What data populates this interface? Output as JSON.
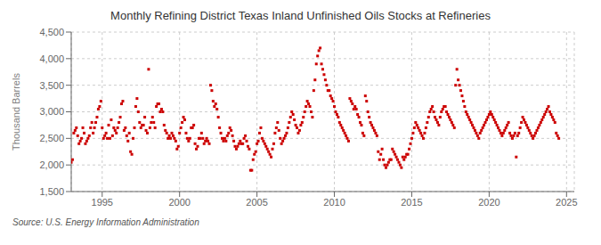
{
  "chart_data": {
    "type": "scatter",
    "title": "Monthly Refining District Texas Inland Unfinished Oils Stocks at Refineries",
    "ylabel": "Thousand Barrels",
    "annotations": [
      "Source: U.S. Energy Information Administration"
    ],
    "xlim": [
      1993.0,
      2025.5
    ],
    "xticks": [
      1995,
      2000,
      2005,
      2010,
      2015,
      2020,
      2025
    ],
    "ylim": [
      1500,
      4500
    ],
    "yticks": [
      {
        "value": 1500,
        "label": "1,500"
      },
      {
        "value": 2000,
        "label": "2,000"
      },
      {
        "value": 2500,
        "label": "2,500"
      },
      {
        "value": 3000,
        "label": "3,000"
      },
      {
        "value": 3500,
        "label": "3,500"
      },
      {
        "value": 4000,
        "label": "4,000"
      },
      {
        "value": 4500,
        "label": "4,500"
      }
    ],
    "grid": true,
    "color": "#cc0000",
    "marker": "square",
    "x": [
      1993.0,
      1993.0833333333333,
      1993.1666666666667,
      1993.25,
      1993.3333333333333,
      1993.4166666666667,
      1993.5,
      1993.5833333333333,
      1993.6666666666667,
      1993.75,
      1993.8333333333333,
      1993.9166666666667,
      1994.0,
      1994.0833333333333,
      1994.1666666666667,
      1994.25,
      1994.3333333333333,
      1994.4166666666667,
      1994.5,
      1994.5833333333333,
      1994.6666666666667,
      1994.75,
      1994.8333333333333,
      1994.9166666666667,
      1995.0,
      1995.0833333333333,
      1995.1666666666667,
      1995.25,
      1995.3333333333333,
      1995.4166666666667,
      1995.5,
      1995.5833333333333,
      1995.6666666666667,
      1995.75,
      1995.8333333333333,
      1995.9166666666667,
      1996.0,
      1996.0833333333333,
      1996.1666666666667,
      1996.25,
      1996.3333333333333,
      1996.4166666666667,
      1996.5,
      1996.5833333333333,
      1996.6666666666667,
      1996.75,
      1996.8333333333333,
      1996.9166666666667,
      1997.0,
      1997.0833333333333,
      1997.1666666666667,
      1997.25,
      1997.3333333333333,
      1997.4166666666667,
      1997.5,
      1997.5833333333333,
      1997.6666666666667,
      1997.75,
      1997.8333333333333,
      1997.9166666666667,
      1998.0,
      1998.0833333333333,
      1998.1666666666667,
      1998.25,
      1998.3333333333333,
      1998.4166666666667,
      1998.5,
      1998.5833333333333,
      1998.6666666666667,
      1998.75,
      1998.8333333333333,
      1998.9166666666667,
      1999.0,
      1999.0833333333333,
      1999.1666666666667,
      1999.25,
      1999.3333333333333,
      1999.4166666666667,
      1999.5,
      1999.5833333333333,
      1999.6666666666667,
      1999.75,
      1999.8333333333333,
      1999.9166666666667,
      2000.0,
      2000.0833333333333,
      2000.1666666666667,
      2000.25,
      2000.3333333333333,
      2000.4166666666667,
      2000.5,
      2000.5833333333333,
      2000.6666666666667,
      2000.75,
      2000.8333333333333,
      2000.9166666666667,
      2001.0,
      2001.0833333333333,
      2001.1666666666667,
      2001.25,
      2001.3333333333333,
      2001.4166666666667,
      2001.5,
      2001.5833333333333,
      2001.6666666666667,
      2001.75,
      2001.8333333333333,
      2001.9166666666667,
      2002.0,
      2002.0833333333333,
      2002.1666666666667,
      2002.25,
      2002.3333333333333,
      2002.4166666666667,
      2002.5,
      2002.5833333333333,
      2002.6666666666667,
      2002.75,
      2002.8333333333333,
      2002.9166666666667,
      2003.0,
      2003.0833333333333,
      2003.1666666666667,
      2003.25,
      2003.3333333333333,
      2003.4166666666667,
      2003.5,
      2003.5833333333333,
      2003.6666666666667,
      2003.75,
      2003.8333333333333,
      2003.9166666666667,
      2004.0,
      2004.0833333333333,
      2004.1666666666667,
      2004.25,
      2004.3333333333333,
      2004.4166666666667,
      2004.5,
      2004.5833333333333,
      2004.6666666666667,
      2004.75,
      2004.8333333333333,
      2004.9166666666667,
      2005.0,
      2005.0833333333333,
      2005.1666666666667,
      2005.25,
      2005.3333333333333,
      2005.4166666666667,
      2005.5,
      2005.5833333333333,
      2005.6666666666667,
      2005.75,
      2005.8333333333333,
      2005.9166666666667,
      2006.0,
      2006.0833333333333,
      2006.1666666666667,
      2006.25,
      2006.3333333333333,
      2006.4166666666667,
      2006.5,
      2006.5833333333333,
      2006.6666666666667,
      2006.75,
      2006.8333333333333,
      2006.9166666666667,
      2007.0,
      2007.0833333333333,
      2007.1666666666667,
      2007.25,
      2007.3333333333333,
      2007.4166666666667,
      2007.5,
      2007.5833333333333,
      2007.6666666666667,
      2007.75,
      2007.8333333333333,
      2007.9166666666667,
      2008.0,
      2008.0833333333333,
      2008.1666666666667,
      2008.25,
      2008.3333333333333,
      2008.4166666666667,
      2008.5,
      2008.5833333333333,
      2008.6666666666667,
      2008.75,
      2008.8333333333333,
      2008.9166666666667,
      2009.0,
      2009.0833333333333,
      2009.1666666666667,
      2009.25,
      2009.3333333333333,
      2009.4166666666667,
      2009.5,
      2009.5833333333333,
      2009.6666666666667,
      2009.75,
      2009.8333333333333,
      2009.9166666666667,
      2010.0,
      2010.0833333333333,
      2010.1666666666667,
      2010.25,
      2010.3333333333333,
      2010.4166666666667,
      2010.5,
      2010.5833333333333,
      2010.6666666666667,
      2010.75,
      2010.8333333333333,
      2010.9166666666667,
      2011.0,
      2011.0833333333333,
      2011.1666666666667,
      2011.25,
      2011.3333333333333,
      2011.4166666666667,
      2011.5,
      2011.5833333333333,
      2011.6666666666667,
      2011.75,
      2011.8333333333333,
      2011.9166666666667,
      2012.0,
      2012.0833333333333,
      2012.1666666666667,
      2012.25,
      2012.3333333333333,
      2012.4166666666667,
      2012.5,
      2012.5833333333333,
      2012.6666666666667,
      2012.75,
      2012.8333333333333,
      2012.9166666666667,
      2013.0,
      2013.0833333333333,
      2013.1666666666667,
      2013.25,
      2013.3333333333333,
      2013.4166666666667,
      2013.5,
      2013.5833333333333,
      2013.6666666666667,
      2013.75,
      2013.8333333333333,
      2013.9166666666667,
      2014.0,
      2014.0833333333333,
      2014.1666666666667,
      2014.25,
      2014.3333333333333,
      2014.4166666666667,
      2014.5,
      2014.5833333333333,
      2014.6666666666667,
      2014.75,
      2014.8333333333333,
      2014.9166666666667,
      2015.0,
      2015.0833333333333,
      2015.1666666666667,
      2015.25,
      2015.3333333333333,
      2015.4166666666667,
      2015.5,
      2015.5833333333333,
      2015.6666666666667,
      2015.75,
      2015.8333333333333,
      2015.9166666666667,
      2016.0,
      2016.0833333333333,
      2016.1666666666667,
      2016.25,
      2016.3333333333333,
      2016.4166666666667,
      2016.5,
      2016.5833333333333,
      2016.6666666666667,
      2016.75,
      2016.8333333333333,
      2016.9166666666667,
      2017.0,
      2017.0833333333333,
      2017.1666666666667,
      2017.25,
      2017.3333333333333,
      2017.4166666666667,
      2017.5,
      2017.5833333333333,
      2017.6666666666667,
      2017.75,
      2017.8333333333333,
      2017.9166666666667,
      2018.0,
      2018.0833333333333,
      2018.1666666666667,
      2018.25,
      2018.3333333333333,
      2018.4166666666667,
      2018.5,
      2018.5833333333333,
      2018.6666666666667,
      2018.75,
      2018.8333333333333,
      2018.9166666666667,
      2019.0,
      2019.0833333333333,
      2019.1666666666667,
      2019.25,
      2019.3333333333333,
      2019.4166666666667,
      2019.5,
      2019.5833333333333,
      2019.6666666666667,
      2019.75,
      2019.8333333333333,
      2019.9166666666667,
      2020.0,
      2020.0833333333333,
      2020.1666666666667,
      2020.25,
      2020.3333333333333,
      2020.4166666666667,
      2020.5,
      2020.5833333333333,
      2020.6666666666667,
      2020.75,
      2020.8333333333333,
      2020.9166666666667,
      2021.0,
      2021.0833333333333,
      2021.1666666666667,
      2021.25,
      2021.3333333333333,
      2021.4166666666667,
      2021.5,
      2021.5833333333333,
      2021.6666666666667,
      2021.75,
      2021.8333333333333,
      2021.9166666666667,
      2022.0,
      2022.0833333333333,
      2022.1666666666667,
      2022.25,
      2022.3333333333333,
      2022.4166666666667,
      2022.5,
      2022.5833333333333,
      2022.6666666666667,
      2022.75,
      2022.8333333333333,
      2022.9166666666667,
      2023.0,
      2023.0833333333333,
      2023.1666666666667,
      2023.25,
      2023.3333333333333,
      2023.4166666666667,
      2023.5,
      2023.5833333333333,
      2023.6666666666667,
      2023.75,
      2023.8333333333333,
      2023.9166666666667,
      2024.0,
      2024.0833333333333,
      2024.1666666666667,
      2024.25,
      2024.3333333333333,
      2024.4166666666667,
      2024.5
    ],
    "values": [
      2050,
      2100,
      2600,
      2650,
      2700,
      2550,
      2400,
      2450,
      2500,
      2700,
      2600,
      2400,
      2450,
      2500,
      2550,
      2700,
      2800,
      2600,
      2700,
      2800,
      2900,
      3050,
      3100,
      3200,
      2700,
      2500,
      2550,
      2600,
      2500,
      2750,
      2500,
      2850,
      2550,
      2700,
      2650,
      2600,
      2700,
      2800,
      2900,
      3150,
      3200,
      2650,
      2700,
      2550,
      2450,
      2600,
      2250,
      2200,
      2500,
      2700,
      3100,
      3250,
      3000,
      2800,
      2700,
      2750,
      2750,
      2900,
      2650,
      2600,
      3800,
      2700,
      2800,
      2900,
      2800,
      2700,
      3100,
      3150,
      3150,
      3000,
      3050,
      3000,
      2750,
      2650,
      2600,
      2500,
      2550,
      2500,
      2600,
      2550,
      2500,
      2450,
      2300,
      2350,
      2600,
      2700,
      2800,
      2900,
      2850,
      2600,
      2500,
      2450,
      2500,
      2700,
      2700,
      2750,
      2400,
      2300,
      2350,
      2500,
      2500,
      2600,
      2500,
      2400,
      2450,
      2500,
      2450,
      2400,
      3500,
      3400,
      3200,
      3100,
      3150,
      3050,
      2900,
      2700,
      2600,
      2500,
      2450,
      2500,
      2450,
      2550,
      2600,
      2700,
      2650,
      2550,
      2450,
      2350,
      2300,
      2350,
      2400,
      2450,
      2400,
      2400,
      2500,
      2550,
      2450,
      2350,
      2300,
      1900,
      1900,
      2100,
      2200,
      2250,
      2400,
      2450,
      2600,
      2700,
      2500,
      2450,
      2400,
      2350,
      2300,
      2250,
      2200,
      2150,
      2300,
      2400,
      2600,
      2700,
      2800,
      2650,
      2500,
      2400,
      2450,
      2500,
      2550,
      2600,
      2700,
      2800,
      2900,
      3000,
      2950,
      2850,
      2750,
      2700,
      2600,
      2650,
      2750,
      2800,
      2900,
      3000,
      3100,
      3200,
      3150,
      3100,
      3000,
      2900,
      3400,
      3600,
      3900,
      4050,
      4150,
      4200,
      3900,
      3800,
      3700,
      3600,
      3500,
      3400,
      3400,
      3300,
      3250,
      3200,
      3100,
      3000,
      2950,
      2900,
      2800,
      2750,
      2700,
      2650,
      2600,
      2550,
      2500,
      2450,
      3250,
      3200,
      3150,
      3050,
      3100,
      3050,
      2950,
      2900,
      2800,
      2750,
      2600,
      2550,
      3300,
      3200,
      3000,
      2900,
      2800,
      2750,
      2700,
      2650,
      2600,
      2550,
      2250,
      2100,
      2200,
      2300,
      2100,
      2000,
      1950,
      2000,
      2050,
      2100,
      2100,
      2300,
      2250,
      2200,
      2150,
      2100,
      2050,
      2000,
      1950,
      2150,
      2100,
      2150,
      2200,
      2200,
      2300,
      2400,
      2500,
      2600,
      2700,
      2800,
      2750,
      2700,
      2650,
      2600,
      2550,
      2500,
      2600,
      2700,
      2800,
      2900,
      3000,
      3050,
      3100,
      3000,
      2900,
      2850,
      2800,
      2750,
      2900,
      3000,
      3050,
      3100,
      3100,
      3000,
      2950,
      2900,
      2850,
      2800,
      2750,
      2700,
      3500,
      3800,
      3600,
      3500,
      3400,
      3300,
      3200,
      3100,
      3000,
      2950,
      2900,
      2850,
      2800,
      2750,
      2700,
      2650,
      2600,
      2550,
      2500,
      2600,
      2650,
      2700,
      2750,
      2800,
      2850,
      2900,
      2950,
      3000,
      2950,
      2900,
      2850,
      2800,
      2750,
      2700,
      2650,
      2600,
      2550,
      2600,
      2650,
      2700,
      2750,
      2800,
      2600,
      2550,
      2500,
      2550,
      2600,
      2150,
      2550,
      2600,
      2700,
      2800,
      2900,
      2850,
      2800,
      2750,
      2700,
      2650,
      2600,
      2550,
      2500,
      2550,
      2600,
      2650,
      2700,
      2750,
      2800,
      2850,
      2900,
      2950,
      3000,
      3050,
      3100,
      3000,
      2950,
      2900,
      2850,
      2800,
      2600,
      2550,
      2500
    ]
  }
}
